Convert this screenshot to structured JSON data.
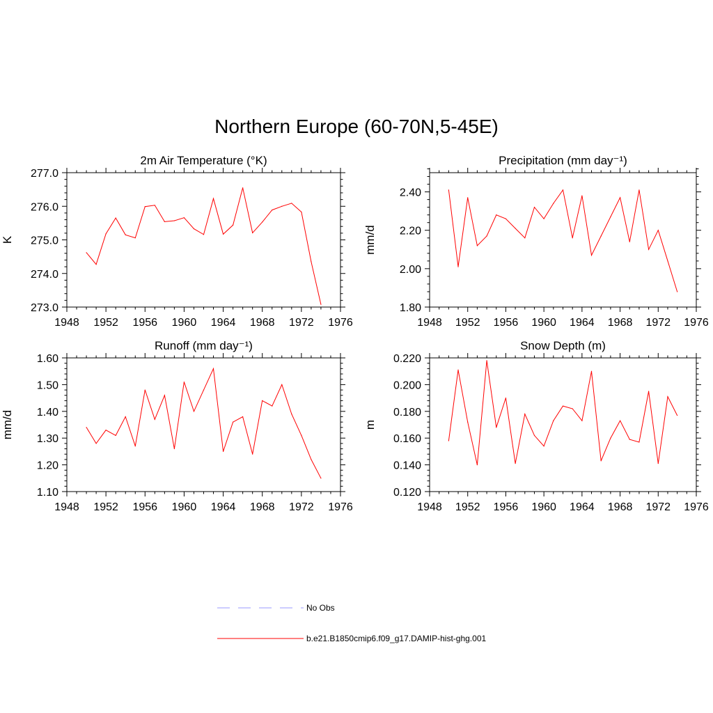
{
  "title": "Northern Europe (60-70N,5-45E)",
  "colors": {
    "model": "#ff0000",
    "obs": "#9999ff",
    "axis": "#000000"
  },
  "legend": {
    "obs_label": "No Obs",
    "model_label": "b.e21.B1850cmip6.f09_g17.DAMIP-hist-ghg.001"
  },
  "chart_data": [
    {
      "type": "line",
      "title": "2m Air Temperature (°K)",
      "ylabel": "K",
      "xlim": [
        1948,
        1976
      ],
      "ylim": [
        273.0,
        277.0
      ],
      "xticks": [
        1948,
        1952,
        1956,
        1960,
        1964,
        1968,
        1972,
        1976
      ],
      "yticks": [
        "273.0",
        "274.0",
        "275.0",
        "276.0",
        "277.0"
      ],
      "ytick_values": [
        273.0,
        274.0,
        275.0,
        276.0,
        277.0
      ],
      "x": [
        1950,
        1951,
        1952,
        1953,
        1954,
        1955,
        1956,
        1957,
        1958,
        1959,
        1960,
        1961,
        1962,
        1963,
        1964,
        1965,
        1966,
        1967,
        1968,
        1969,
        1970,
        1971,
        1972,
        1973,
        1974
      ],
      "series": [
        {
          "values": [
            274.62,
            274.27,
            275.18,
            275.65,
            275.15,
            275.06,
            275.99,
            276.03,
            275.54,
            275.57,
            275.66,
            275.33,
            275.16,
            276.23,
            275.17,
            275.44,
            276.55,
            275.21,
            275.53,
            275.89,
            276.0,
            276.09,
            275.83,
            274.35,
            273.08
          ]
        }
      ]
    },
    {
      "type": "line",
      "title": "Precipitation (mm day⁻¹)",
      "ylabel": "mm/d",
      "xlim": [
        1948,
        1976
      ],
      "ylim": [
        1.8,
        2.5
      ],
      "xticks": [
        1948,
        1952,
        1956,
        1960,
        1964,
        1968,
        1972,
        1976
      ],
      "yticks": [
        "1.80",
        "2.00",
        "2.20",
        "2.40"
      ],
      "ytick_values": [
        1.8,
        2.0,
        2.2,
        2.4
      ],
      "x": [
        1950,
        1951,
        1952,
        1953,
        1954,
        1955,
        1956,
        1957,
        1958,
        1959,
        1960,
        1961,
        1962,
        1963,
        1964,
        1965,
        1966,
        1967,
        1968,
        1969,
        1970,
        1971,
        1972,
        1973,
        1974
      ],
      "series": [
        {
          "values": [
            2.41,
            2.01,
            2.37,
            2.12,
            2.17,
            2.28,
            2.26,
            2.21,
            2.16,
            2.32,
            2.26,
            2.34,
            2.41,
            2.16,
            2.38,
            2.07,
            2.17,
            2.27,
            2.37,
            2.14,
            2.41,
            2.1,
            2.2,
            2.04,
            1.88
          ]
        }
      ]
    },
    {
      "type": "line",
      "title": "Runoff (mm day⁻¹)",
      "ylabel": "mm/d",
      "xlim": [
        1948,
        1976
      ],
      "ylim": [
        1.1,
        1.6
      ],
      "xticks": [
        1948,
        1952,
        1956,
        1960,
        1964,
        1968,
        1972,
        1976
      ],
      "yticks": [
        "1.10",
        "1.20",
        "1.30",
        "1.40",
        "1.50",
        "1.60"
      ],
      "ytick_values": [
        1.1,
        1.2,
        1.3,
        1.4,
        1.5,
        1.6
      ],
      "x": [
        1950,
        1951,
        1952,
        1953,
        1954,
        1955,
        1956,
        1957,
        1958,
        1959,
        1960,
        1961,
        1962,
        1963,
        1964,
        1965,
        1966,
        1967,
        1968,
        1969,
        1970,
        1971,
        1972,
        1973,
        1974
      ],
      "series": [
        {
          "values": [
            1.34,
            1.28,
            1.33,
            1.31,
            1.38,
            1.27,
            1.48,
            1.37,
            1.46,
            1.26,
            1.51,
            1.4,
            1.48,
            1.56,
            1.25,
            1.36,
            1.38,
            1.24,
            1.44,
            1.42,
            1.5,
            1.39,
            1.31,
            1.22,
            1.15
          ]
        }
      ]
    },
    {
      "type": "line",
      "title": "Snow Depth (m)",
      "ylabel": "m",
      "xlim": [
        1948,
        1976
      ],
      "ylim": [
        0.12,
        0.22
      ],
      "xticks": [
        1948,
        1952,
        1956,
        1960,
        1964,
        1968,
        1972,
        1976
      ],
      "yticks": [
        "0.120",
        "0.140",
        "0.160",
        "0.180",
        "0.200",
        "0.220"
      ],
      "ytick_values": [
        0.12,
        0.14,
        0.16,
        0.18,
        0.2,
        0.22
      ],
      "x": [
        1950,
        1951,
        1952,
        1953,
        1954,
        1955,
        1956,
        1957,
        1958,
        1959,
        1960,
        1961,
        1962,
        1963,
        1964,
        1965,
        1966,
        1967,
        1968,
        1969,
        1970,
        1971,
        1972,
        1973,
        1974
      ],
      "series": [
        {
          "values": [
            0.158,
            0.211,
            0.172,
            0.14,
            0.218,
            0.168,
            0.19,
            0.141,
            0.178,
            0.162,
            0.154,
            0.173,
            0.184,
            0.182,
            0.173,
            0.21,
            0.143,
            0.16,
            0.173,
            0.159,
            0.157,
            0.195,
            0.141,
            0.191,
            0.177
          ]
        }
      ]
    }
  ]
}
